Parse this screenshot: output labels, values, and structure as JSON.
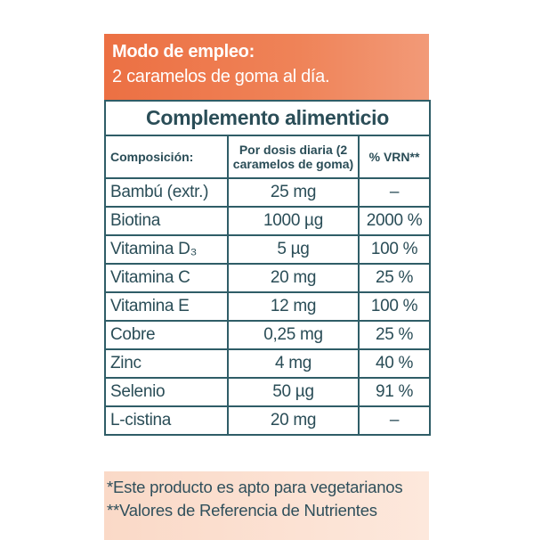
{
  "header": {
    "title": "Modo de empleo:",
    "text": "2 caramelos de goma al día."
  },
  "table": {
    "title": "Complemento alimenticio",
    "columns": [
      "Composición:",
      "Por dosis diaria (2 caramelos de goma)",
      "% VRN**"
    ],
    "rows": [
      [
        "Bambú (extr.)",
        "25 mg",
        "–"
      ],
      [
        "Biotina",
        "1000 µg",
        "2000 %"
      ],
      [
        "Vitamina D₃",
        "5 µg",
        "100 %"
      ],
      [
        "Vitamina C",
        "20 mg",
        "25 %"
      ],
      [
        "Vitamina E",
        "12 mg",
        "100 %"
      ],
      [
        "Cobre",
        "0,25 mg",
        "25 %"
      ],
      [
        "Zinc",
        "4 mg",
        "40 %"
      ],
      [
        "Selenio",
        "50 µg",
        "91 %"
      ],
      [
        "L-cistina",
        "20 mg",
        "–"
      ]
    ]
  },
  "footer": {
    "note1": "*Este producto es apto para vegetarianos",
    "note2": "**Valores de Referencia de Nutrientes"
  }
}
